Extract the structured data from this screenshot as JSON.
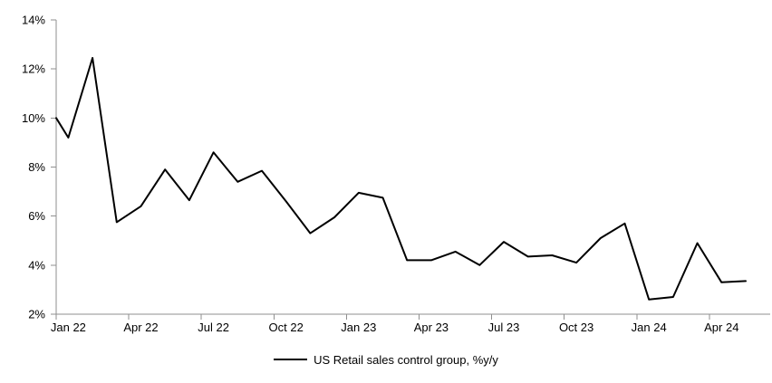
{
  "chart_data": {
    "type": "line",
    "title": "",
    "grid": false,
    "legend_position": "bottom-center",
    "colors": {
      "axis": "#8f8f8f",
      "series": "#000000",
      "text": "#000000",
      "background": "#ffffff"
    },
    "x": [
      "Jan 22",
      "Feb 22",
      "Mar 22",
      "Apr 22",
      "May 22",
      "Jun 22",
      "Jul 22",
      "Aug 22",
      "Sep 22",
      "Oct 22",
      "Nov 22",
      "Dec 22",
      "Jan 23",
      "Feb 23",
      "Mar 23",
      "Apr 23",
      "May 23",
      "Jun 23",
      "Jul 23",
      "Aug 23",
      "Sep 23",
      "Oct 23",
      "Nov 23",
      "Dec 23",
      "Jan 24",
      "Feb 24",
      "Mar 24",
      "Apr 24",
      "May 24"
    ],
    "series": [
      {
        "name": "US Retail sales control group, %y/y",
        "color": "#000000",
        "edge_entry_value": 10.0,
        "values": [
          9.2,
          12.45,
          5.75,
          6.4,
          7.9,
          6.65,
          8.6,
          7.4,
          7.85,
          6.6,
          5.3,
          5.95,
          6.95,
          6.75,
          4.2,
          4.2,
          4.55,
          4.0,
          4.95,
          4.35,
          4.4,
          4.1,
          5.1,
          5.7,
          2.6,
          2.7,
          4.9,
          3.3,
          3.35
        ]
      }
    ],
    "y_axis": {
      "min": 2,
      "max": 14,
      "tick_step": 2,
      "ticks": [
        {
          "value": 2,
          "label": "2%"
        },
        {
          "value": 4,
          "label": "4%"
        },
        {
          "value": 6,
          "label": "6%"
        },
        {
          "value": 8,
          "label": "8%"
        },
        {
          "value": 10,
          "label": "10%"
        },
        {
          "value": 12,
          "label": "12%"
        },
        {
          "value": 14,
          "label": "14%"
        }
      ]
    },
    "x_axis": {
      "tick_interval_months": 3,
      "ticks": [
        {
          "month_index": 0,
          "label": "Jan 22"
        },
        {
          "month_index": 3,
          "label": "Apr 22"
        },
        {
          "month_index": 6,
          "label": "Jul 22"
        },
        {
          "month_index": 9,
          "label": "Oct 22"
        },
        {
          "month_index": 12,
          "label": "Jan 23"
        },
        {
          "month_index": 15,
          "label": "Apr 23"
        },
        {
          "month_index": 18,
          "label": "Jul 23"
        },
        {
          "month_index": 21,
          "label": "Oct 23"
        },
        {
          "month_index": 24,
          "label": "Jan 24"
        },
        {
          "month_index": 27,
          "label": "Apr 24"
        }
      ]
    },
    "legend": [
      "US Retail sales control group, %y/y"
    ]
  }
}
